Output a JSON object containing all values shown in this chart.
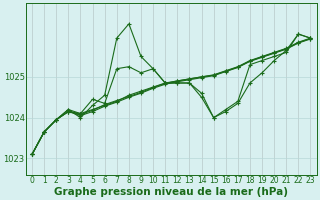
{
  "x": [
    0,
    1,
    2,
    3,
    4,
    5,
    6,
    7,
    8,
    9,
    10,
    11,
    12,
    13,
    14,
    15,
    16,
    17,
    18,
    19,
    20,
    21,
    22,
    23
  ],
  "line_trend1": [
    1023.1,
    1023.65,
    1023.95,
    1024.15,
    1024.1,
    1024.2,
    1024.3,
    1024.4,
    1024.55,
    1024.65,
    1024.75,
    1024.85,
    1024.9,
    1024.95,
    1025.0,
    1025.05,
    1025.15,
    1025.25,
    1025.4,
    1025.5,
    1025.6,
    1025.7,
    1025.85,
    1025.95
  ],
  "line_trend2": [
    1023.1,
    1023.65,
    1023.95,
    1024.15,
    1024.05,
    1024.15,
    1024.28,
    1024.38,
    1024.5,
    1024.6,
    1024.72,
    1024.82,
    1024.88,
    1024.93,
    1024.98,
    1025.03,
    1025.13,
    1025.23,
    1025.38,
    1025.48,
    1025.58,
    1025.68,
    1025.83,
    1025.93
  ],
  "line_trend3": [
    1023.1,
    1023.65,
    1023.95,
    1024.15,
    1024.08,
    1024.18,
    1024.32,
    1024.42,
    1024.52,
    1024.62,
    1024.74,
    1024.84,
    1024.9,
    1024.95,
    1025.0,
    1025.04,
    1025.14,
    1025.24,
    1025.39,
    1025.49,
    1025.59,
    1025.69,
    1025.84,
    1025.94
  ],
  "line_wavy": [
    1023.1,
    1023.65,
    1023.95,
    1024.2,
    1024.1,
    1024.45,
    1024.35,
    1025.2,
    1025.25,
    1025.1,
    1025.2,
    1024.85,
    1024.85,
    1024.85,
    1024.6,
    1024.0,
    1024.15,
    1024.35,
    1024.85,
    1025.1,
    1025.4,
    1025.65,
    1026.05,
    1025.95
  ],
  "line_spike": [
    1023.1,
    1023.65,
    1023.95,
    1024.2,
    1024.0,
    1024.3,
    1024.55,
    1025.95,
    1026.3,
    1025.5,
    1025.2,
    1024.85,
    1024.85,
    1024.85,
    1024.5,
    1024.0,
    1024.2,
    1024.4,
    1025.3,
    1025.4,
    1025.5,
    1025.6,
    1026.05,
    1025.95
  ],
  "bg_color": "#d8f0f0",
  "line_color": "#1a6b1a",
  "grid_color": "#b8d8d8",
  "title": "Graphe pression niveau de la mer (hPa)",
  "ylim": [
    1022.6,
    1026.8
  ],
  "yticks": [
    1023,
    1024,
    1025
  ],
  "title_fontsize": 7.5,
  "tick_fontsize": 5.5
}
